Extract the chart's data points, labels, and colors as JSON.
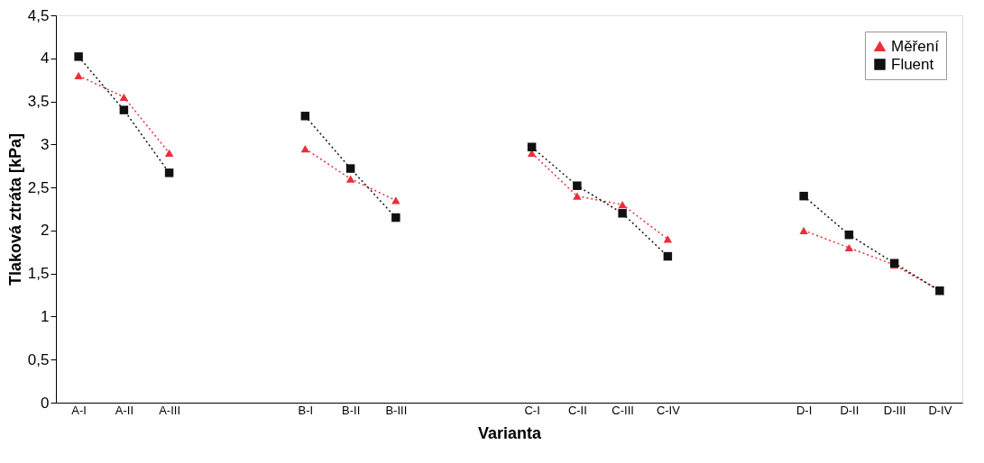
{
  "chart_data": {
    "type": "line",
    "xlabel": "Varianta",
    "ylabel": "Tlaková ztráta [kPa]",
    "categories": [
      "A-I",
      "A-II",
      "A-III",
      null,
      null,
      "B-I",
      "B-II",
      "B-III",
      null,
      null,
      "C-I",
      "C-II",
      "C-III",
      "C-IV",
      null,
      null,
      "D-I",
      "D-II",
      "D-III",
      "D-IV"
    ],
    "series": [
      {
        "name": "Měření",
        "color": "#e8303a",
        "marker": "triangle",
        "values": [
          3.8,
          3.55,
          2.9,
          null,
          null,
          2.95,
          2.6,
          2.35,
          null,
          null,
          2.9,
          2.4,
          2.3,
          1.9,
          null,
          null,
          2.0,
          1.8,
          1.6,
          1.3
        ]
      },
      {
        "name": "Fluent",
        "color": "#111111",
        "marker": "square",
        "values": [
          4.02,
          3.4,
          2.67,
          null,
          null,
          3.33,
          2.72,
          2.15,
          null,
          null,
          2.97,
          2.52,
          2.2,
          1.7,
          null,
          null,
          2.4,
          1.95,
          1.62,
          1.3
        ]
      }
    ],
    "ylim": [
      0,
      4.5
    ],
    "yticks": [
      0,
      {
        "value": 0.5,
        "label": "0,5"
      },
      1,
      {
        "value": 1.5,
        "label": "1,5"
      },
      2,
      {
        "value": 2.5,
        "label": "2,5"
      },
      3,
      {
        "value": 3.5,
        "label": "3,5"
      },
      4,
      {
        "value": 4.5,
        "label": "4,5"
      }
    ],
    "grid": false,
    "legend": "top right",
    "line_style": "dotted"
  }
}
